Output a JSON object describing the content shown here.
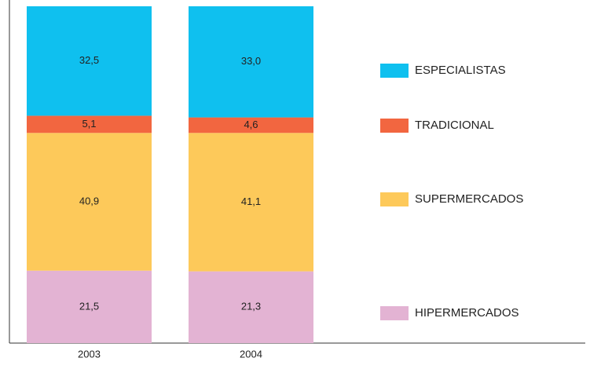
{
  "chart_data": {
    "type": "stacked_bar",
    "categories": [
      "2003",
      "2004"
    ],
    "series": [
      {
        "name": "HIPERMERCADOS",
        "color": "#e3b3d3",
        "values": [
          21.5,
          21.3
        ],
        "value_labels": [
          "21,5",
          "21,3"
        ]
      },
      {
        "name": "SUPERMERCADOS",
        "color": "#fdc95a",
        "values": [
          40.9,
          41.1
        ],
        "value_labels": [
          "40,9",
          "41,1"
        ]
      },
      {
        "name": "TRADICIONAL",
        "color": "#f26640",
        "values": [
          5.1,
          4.6
        ],
        "value_labels": [
          "5,1",
          "4,6"
        ]
      },
      {
        "name": "ESPECIALISTAS",
        "color": "#0fc0ef",
        "values": [
          32.5,
          33.0
        ],
        "value_labels": [
          "32,5",
          "33,0"
        ]
      }
    ],
    "ylim": [
      0,
      100
    ]
  }
}
